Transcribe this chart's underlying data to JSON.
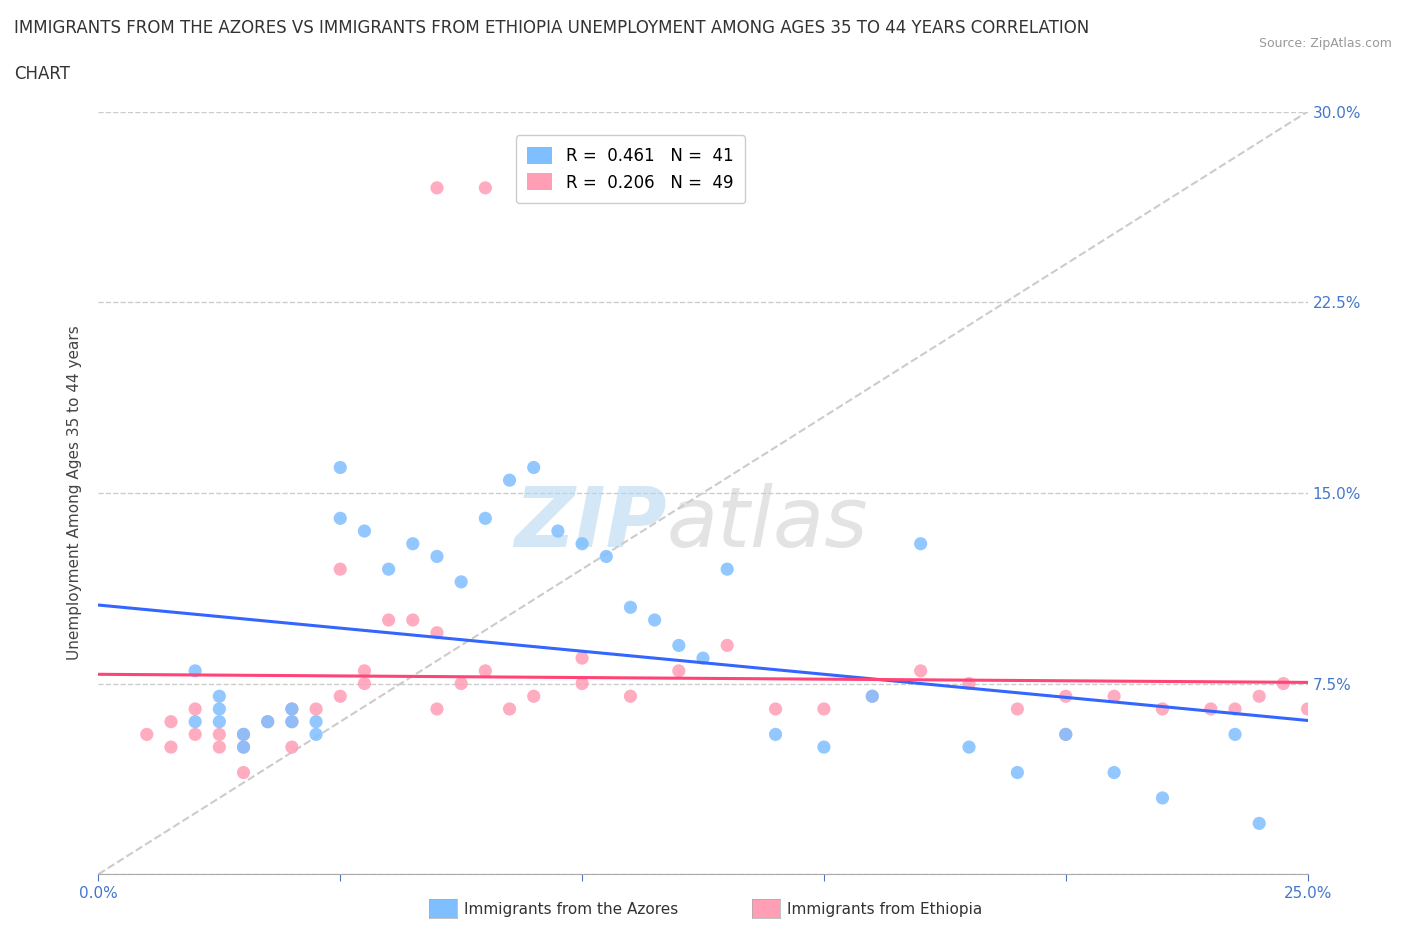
{
  "title_line1": "IMMIGRANTS FROM THE AZORES VS IMMIGRANTS FROM ETHIOPIA UNEMPLOYMENT AMONG AGES 35 TO 44 YEARS CORRELATION",
  "title_line2": "CHART",
  "source_text": "Source: ZipAtlas.com",
  "ylabel": "Unemployment Among Ages 35 to 44 years",
  "xlim": [
    0,
    0.25
  ],
  "ylim": [
    0,
    0.3
  ],
  "xticks": [
    0.0,
    0.05,
    0.1,
    0.15,
    0.2,
    0.25
  ],
  "yticks": [
    0.0,
    0.075,
    0.15,
    0.225,
    0.3
  ],
  "yticklabels_right": [
    "",
    "7.5%",
    "15.0%",
    "22.5%",
    "30.0%"
  ],
  "legend_r_azores": "R =  0.461",
  "legend_n_azores": "N =  41",
  "legend_r_ethiopia": "R =  0.206",
  "legend_n_ethiopia": "N =  49",
  "azores_color": "#7fbfff",
  "ethiopia_color": "#ff9eb5",
  "trendline_azores_color": "#3366ff",
  "trendline_ethiopia_color": "#ff4477",
  "background_color": "#ffffff",
  "azores_scatter_x": [
    0.02,
    0.02,
    0.025,
    0.025,
    0.025,
    0.03,
    0.03,
    0.035,
    0.04,
    0.04,
    0.045,
    0.045,
    0.05,
    0.05,
    0.055,
    0.06,
    0.065,
    0.07,
    0.075,
    0.08,
    0.085,
    0.09,
    0.095,
    0.1,
    0.105,
    0.11,
    0.115,
    0.12,
    0.125,
    0.13,
    0.14,
    0.15,
    0.16,
    0.17,
    0.18,
    0.19,
    0.2,
    0.21,
    0.22,
    0.235,
    0.24
  ],
  "azores_scatter_y": [
    0.06,
    0.08,
    0.06,
    0.065,
    0.07,
    0.05,
    0.055,
    0.06,
    0.06,
    0.065,
    0.055,
    0.06,
    0.14,
    0.16,
    0.135,
    0.12,
    0.13,
    0.125,
    0.115,
    0.14,
    0.155,
    0.16,
    0.135,
    0.13,
    0.125,
    0.105,
    0.1,
    0.09,
    0.085,
    0.12,
    0.055,
    0.05,
    0.07,
    0.13,
    0.05,
    0.04,
    0.055,
    0.04,
    0.03,
    0.055,
    0.02
  ],
  "ethiopia_scatter_x": [
    0.01,
    0.015,
    0.015,
    0.02,
    0.02,
    0.025,
    0.025,
    0.03,
    0.03,
    0.03,
    0.035,
    0.04,
    0.04,
    0.04,
    0.045,
    0.05,
    0.05,
    0.055,
    0.055,
    0.06,
    0.065,
    0.07,
    0.07,
    0.075,
    0.08,
    0.085,
    0.09,
    0.1,
    0.1,
    0.11,
    0.12,
    0.13,
    0.14,
    0.15,
    0.16,
    0.17,
    0.18,
    0.19,
    0.2,
    0.21,
    0.22,
    0.23,
    0.235,
    0.24,
    0.245,
    0.25,
    0.2,
    0.08,
    0.07
  ],
  "ethiopia_scatter_y": [
    0.055,
    0.05,
    0.06,
    0.055,
    0.065,
    0.05,
    0.055,
    0.04,
    0.05,
    0.055,
    0.06,
    0.05,
    0.06,
    0.065,
    0.065,
    0.07,
    0.12,
    0.075,
    0.08,
    0.1,
    0.1,
    0.065,
    0.095,
    0.075,
    0.08,
    0.065,
    0.07,
    0.075,
    0.085,
    0.07,
    0.08,
    0.09,
    0.065,
    0.065,
    0.07,
    0.08,
    0.075,
    0.065,
    0.07,
    0.07,
    0.065,
    0.065,
    0.065,
    0.07,
    0.075,
    0.065,
    0.055,
    0.27,
    0.27
  ]
}
